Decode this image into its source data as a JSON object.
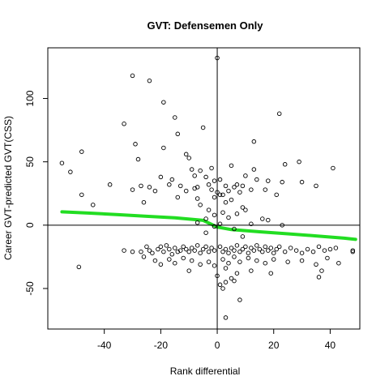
{
  "chart_data": {
    "type": "scatter",
    "title": "GVT: Defensemen Only",
    "xlabel": "Rank differential",
    "ylabel": "Career GVT-predicted GVT(CSS)",
    "xlim": [
      -60,
      50.5
    ],
    "ylim": [
      -82,
      140
    ],
    "x_ticks": [
      -40,
      -20,
      0,
      20,
      40
    ],
    "y_ticks": [
      -50,
      0,
      50,
      100
    ],
    "reference_lines": {
      "vertical_x": 0,
      "horizontal_y": 0
    },
    "grid": false,
    "legend": "none",
    "colors": {
      "points": "#000000",
      "trend": "#22dd22",
      "reference": "#000000"
    },
    "trend": {
      "name": "",
      "x": [
        -55,
        -45,
        -35,
        -25,
        -15,
        -5,
        0,
        5,
        15,
        25,
        35,
        45,
        49
      ],
      "y": [
        10.5,
        9.5,
        8.3,
        7.0,
        5.8,
        3.8,
        -1.5,
        -3.5,
        -5.2,
        -6.8,
        -8.5,
        -10.3,
        -11.2
      ]
    },
    "points": [
      {
        "x": 0,
        "y": 132
      },
      {
        "x": -30,
        "y": 118
      },
      {
        "x": -24,
        "y": 114
      },
      {
        "x": -19,
        "y": 97
      },
      {
        "x": -15,
        "y": 85
      },
      {
        "x": 22,
        "y": 88
      },
      {
        "x": -33,
        "y": 80
      },
      {
        "x": -14,
        "y": 72
      },
      {
        "x": -5,
        "y": 77
      },
      {
        "x": -29,
        "y": 64
      },
      {
        "x": 13,
        "y": 66
      },
      {
        "x": -19,
        "y": 61
      },
      {
        "x": -48,
        "y": 58
      },
      {
        "x": -28,
        "y": 52
      },
      {
        "x": -11,
        "y": 56
      },
      {
        "x": -10,
        "y": 53
      },
      {
        "x": -55,
        "y": 49
      },
      {
        "x": -52,
        "y": 42
      },
      {
        "x": -9,
        "y": 44
      },
      {
        "x": -6,
        "y": 43
      },
      {
        "x": -2,
        "y": 45
      },
      {
        "x": 5,
        "y": 47
      },
      {
        "x": 13,
        "y": 44
      },
      {
        "x": 24,
        "y": 48
      },
      {
        "x": 29,
        "y": 50
      },
      {
        "x": 41,
        "y": 45
      },
      {
        "x": -20,
        "y": 38
      },
      {
        "x": -16,
        "y": 36
      },
      {
        "x": -8,
        "y": 39
      },
      {
        "x": -4,
        "y": 38
      },
      {
        "x": 10,
        "y": 39
      },
      {
        "x": 14,
        "y": 36
      },
      {
        "x": 18,
        "y": 35
      },
      {
        "x": 23,
        "y": 34
      },
      {
        "x": -38,
        "y": 32
      },
      {
        "x": -27,
        "y": 31
      },
      {
        "x": -24,
        "y": 30
      },
      {
        "x": -17,
        "y": 32
      },
      {
        "x": -13,
        "y": 31
      },
      {
        "x": -8,
        "y": 29
      },
      {
        "x": -7,
        "y": 30
      },
      {
        "x": -3,
        "y": 32
      },
      {
        "x": -1,
        "y": 35
      },
      {
        "x": 1,
        "y": 36
      },
      {
        "x": 3,
        "y": 31
      },
      {
        "x": 6,
        "y": 30
      },
      {
        "x": 7,
        "y": 32
      },
      {
        "x": 9,
        "y": 31
      },
      {
        "x": 30,
        "y": 34
      },
      {
        "x": 35,
        "y": 31
      },
      {
        "x": -30,
        "y": 28
      },
      {
        "x": -22,
        "y": 27
      },
      {
        "x": -11,
        "y": 27
      },
      {
        "x": -2,
        "y": 28
      },
      {
        "x": 0,
        "y": 26
      },
      {
        "x": 2,
        "y": 24
      },
      {
        "x": 4,
        "y": 27
      },
      {
        "x": 8,
        "y": 26
      },
      {
        "x": 12,
        "y": 28
      },
      {
        "x": 17,
        "y": 28
      },
      {
        "x": -48,
        "y": 24
      },
      {
        "x": -14,
        "y": 22
      },
      {
        "x": -7,
        "y": 21
      },
      {
        "x": -1,
        "y": 22
      },
      {
        "x": 1,
        "y": 24
      },
      {
        "x": 5,
        "y": 20
      },
      {
        "x": 21,
        "y": 24
      },
      {
        "x": -44,
        "y": 16
      },
      {
        "x": -26,
        "y": 18
      },
      {
        "x": -6,
        "y": 16
      },
      {
        "x": 3,
        "y": 18
      },
      {
        "x": 9,
        "y": 14
      },
      {
        "x": 10,
        "y": 12
      },
      {
        "x": -3,
        "y": 12
      },
      {
        "x": 2,
        "y": 10
      },
      {
        "x": 7,
        "y": 9
      },
      {
        "x": -1,
        "y": 8
      },
      {
        "x": -4,
        "y": 5
      },
      {
        "x": 4,
        "y": 6
      },
      {
        "x": 16,
        "y": 5
      },
      {
        "x": 18,
        "y": 4
      },
      {
        "x": -7,
        "y": 2
      },
      {
        "x": 1,
        "y": 1
      },
      {
        "x": 12,
        "y": 1
      },
      {
        "x": 23,
        "y": 0
      },
      {
        "x": -1,
        "y": -1
      },
      {
        "x": 6,
        "y": -3
      },
      {
        "x": -4,
        "y": -6
      },
      {
        "x": 9,
        "y": -9
      },
      {
        "x": -33,
        "y": -20
      },
      {
        "x": -30,
        "y": -21
      },
      {
        "x": -27,
        "y": -21
      },
      {
        "x": -25,
        "y": -17
      },
      {
        "x": -24,
        "y": -20
      },
      {
        "x": -23,
        "y": -22
      },
      {
        "x": -21,
        "y": -19
      },
      {
        "x": -20,
        "y": -17
      },
      {
        "x": -19,
        "y": -21
      },
      {
        "x": -18,
        "y": -16
      },
      {
        "x": -17,
        "y": -19
      },
      {
        "x": -16,
        "y": -23
      },
      {
        "x": -15,
        "y": -18
      },
      {
        "x": -14,
        "y": -21
      },
      {
        "x": -13,
        "y": -20
      },
      {
        "x": -12,
        "y": -17
      },
      {
        "x": -11,
        "y": -19
      },
      {
        "x": -10,
        "y": -21
      },
      {
        "x": -9,
        "y": -18
      },
      {
        "x": -8,
        "y": -20
      },
      {
        "x": -7,
        "y": -16
      },
      {
        "x": -6,
        "y": -22
      },
      {
        "x": -5,
        "y": -19
      },
      {
        "x": -4,
        "y": -17
      },
      {
        "x": -3,
        "y": -21
      },
      {
        "x": -2,
        "y": -18
      },
      {
        "x": -1,
        "y": -20
      },
      {
        "x": 1,
        "y": -17
      },
      {
        "x": 2,
        "y": -21
      },
      {
        "x": 3,
        "y": -19
      },
      {
        "x": 4,
        "y": -22
      },
      {
        "x": 5,
        "y": -18
      },
      {
        "x": 6,
        "y": -20
      },
      {
        "x": 7,
        "y": -16
      },
      {
        "x": 8,
        "y": -21
      },
      {
        "x": 9,
        "y": -19
      },
      {
        "x": 10,
        "y": -17
      },
      {
        "x": 11,
        "y": -22
      },
      {
        "x": 12,
        "y": -18
      },
      {
        "x": 13,
        "y": -20
      },
      {
        "x": 14,
        "y": -16
      },
      {
        "x": 15,
        "y": -19
      },
      {
        "x": 16,
        "y": -21
      },
      {
        "x": 17,
        "y": -17
      },
      {
        "x": 18,
        "y": -20
      },
      {
        "x": 19,
        "y": -18
      },
      {
        "x": 20,
        "y": -22
      },
      {
        "x": 21,
        "y": -19
      },
      {
        "x": 22,
        "y": -17
      },
      {
        "x": 24,
        "y": -21
      },
      {
        "x": 26,
        "y": -18
      },
      {
        "x": 28,
        "y": -20
      },
      {
        "x": 30,
        "y": -22
      },
      {
        "x": 32,
        "y": -19
      },
      {
        "x": 34,
        "y": -21
      },
      {
        "x": 36,
        "y": -17
      },
      {
        "x": 38,
        "y": -20
      },
      {
        "x": 40,
        "y": -19
      },
      {
        "x": 42,
        "y": -18
      },
      {
        "x": 48,
        "y": -21
      },
      {
        "x": 48,
        "y": -20
      },
      {
        "x": -26,
        "y": -25
      },
      {
        "x": -22,
        "y": -28
      },
      {
        "x": -20,
        "y": -31
      },
      {
        "x": -17,
        "y": -27
      },
      {
        "x": -15,
        "y": -30
      },
      {
        "x": -12,
        "y": -26
      },
      {
        "x": -9,
        "y": -28
      },
      {
        "x": -6,
        "y": -31
      },
      {
        "x": -3,
        "y": -29
      },
      {
        "x": -1,
        "y": -32
      },
      {
        "x": 2,
        "y": -27
      },
      {
        "x": 4,
        "y": -30
      },
      {
        "x": 6,
        "y": -25
      },
      {
        "x": 8,
        "y": -29
      },
      {
        "x": 11,
        "y": -26
      },
      {
        "x": 14,
        "y": -28
      },
      {
        "x": 17,
        "y": -30
      },
      {
        "x": 20,
        "y": -27
      },
      {
        "x": 25,
        "y": -29
      },
      {
        "x": 30,
        "y": -28
      },
      {
        "x": 35,
        "y": -31
      },
      {
        "x": 39,
        "y": -26
      },
      {
        "x": 43,
        "y": -30
      },
      {
        "x": -49,
        "y": -33
      },
      {
        "x": -10,
        "y": -36
      },
      {
        "x": 3,
        "y": -34
      },
      {
        "x": 7,
        "y": -38
      },
      {
        "x": 12,
        "y": -36
      },
      {
        "x": 19,
        "y": -38
      },
      {
        "x": 37,
        "y": -36
      },
      {
        "x": 0,
        "y": -40
      },
      {
        "x": 5,
        "y": -42
      },
      {
        "x": 36,
        "y": -41
      },
      {
        "x": 3,
        "y": -45
      },
      {
        "x": 1,
        "y": -47
      },
      {
        "x": 6,
        "y": -44
      },
      {
        "x": 2,
        "y": -50
      },
      {
        "x": 8,
        "y": -59
      },
      {
        "x": 3,
        "y": -73
      }
    ]
  }
}
